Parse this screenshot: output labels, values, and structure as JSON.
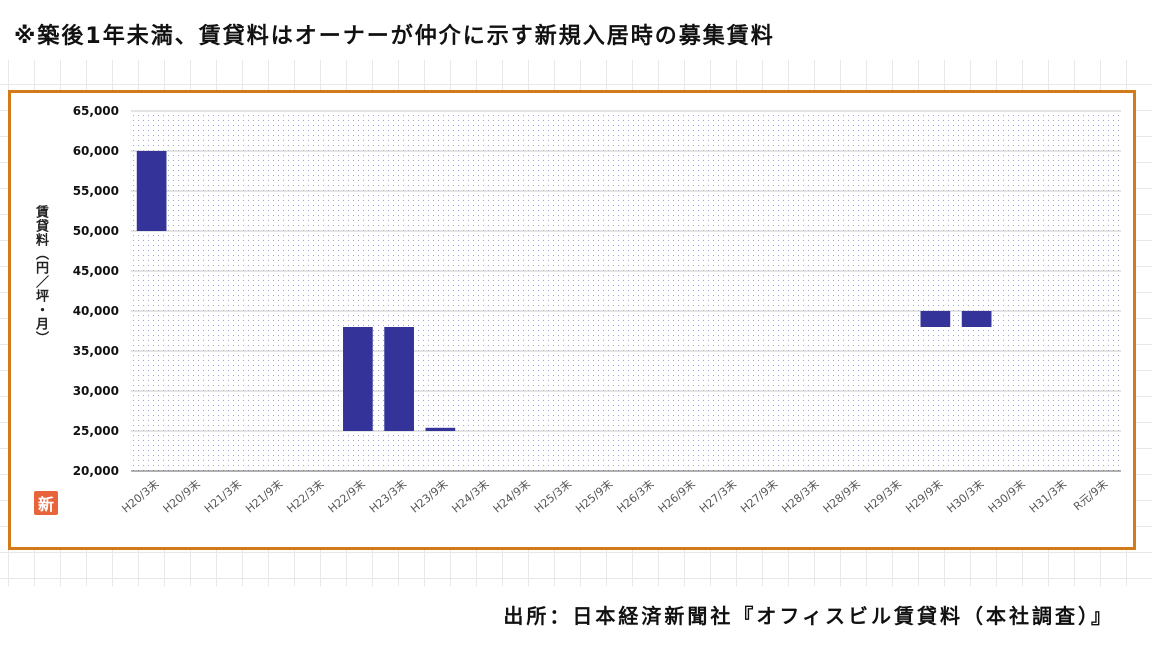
{
  "header": {
    "note": "※築後1年未満、賃貸料はオーナーが仲介に示す新規入居時の募集賃料"
  },
  "footer": {
    "source": "出所：日本経済新聞社『オフィスビル賃貸料（本社調査）』"
  },
  "badge": {
    "text": "新",
    "color": "#e8643a"
  },
  "chart_data": {
    "type": "bar",
    "subtype": "floating-range",
    "title": "",
    "xlabel": "",
    "ylabel": "賃貸料（円／坪・月）",
    "ylim": [
      20000,
      65000
    ],
    "yticks": [
      "20,000",
      "25,000",
      "30,000",
      "35,000",
      "40,000",
      "45,000",
      "50,000",
      "55,000",
      "60,000",
      "65,000"
    ],
    "ytick_values": [
      20000,
      25000,
      30000,
      35000,
      40000,
      45000,
      50000,
      55000,
      60000,
      65000
    ],
    "grid": true,
    "bar_color": "#333399",
    "frame_color": "#d47a1a",
    "categories": [
      "H20/3末",
      "H20/9末",
      "H21/3末",
      "H21/9末",
      "H22/3末",
      "H22/9末",
      "H23/3末",
      "H23/9末",
      "H24/3末",
      "H24/9末",
      "H25/3末",
      "H25/9末",
      "H26/3末",
      "H26/9末",
      "H27/3末",
      "H27/9末",
      "H28/3末",
      "H28/9末",
      "H29/3末",
      "H29/9末",
      "H30/3末",
      "H30/9末",
      "H31/3末",
      "R元/9末"
    ],
    "ranges": [
      [
        50000,
        60000
      ],
      null,
      null,
      null,
      null,
      [
        25000,
        38000
      ],
      [
        25000,
        38000
      ],
      [
        25000,
        25400
      ],
      null,
      null,
      null,
      null,
      null,
      null,
      null,
      null,
      null,
      null,
      null,
      [
        38000,
        40000
      ],
      [
        38000,
        40000
      ],
      null,
      null,
      null
    ]
  }
}
